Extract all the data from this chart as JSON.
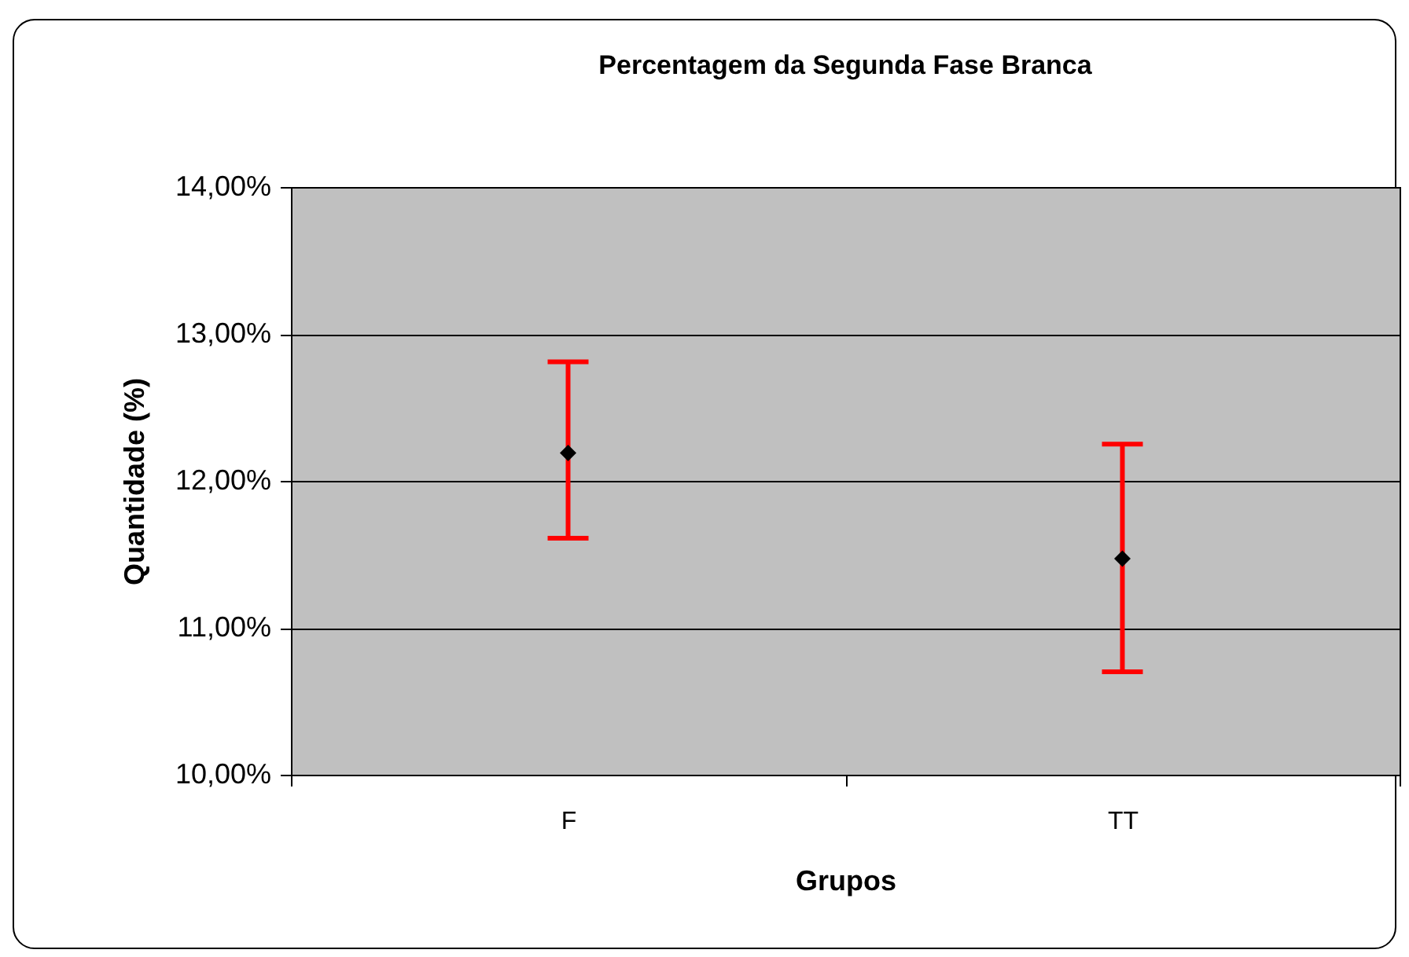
{
  "chart_data": {
    "type": "scatter",
    "title": "Percentagem da Segunda Fase Branca",
    "xlabel": "Grupos",
    "ylabel": "Quantidade (%)",
    "categories": [
      "F",
      "TT"
    ],
    "series": [
      {
        "color": "#000000",
        "values": [
          12.19,
          11.47
        ],
        "errors": [
          [
            11.61,
            12.81
          ],
          [
            10.7,
            12.25
          ]
        ]
      }
    ],
    "ylim": [
      10,
      14
    ],
    "yticks": [
      {
        "value": 10,
        "label": "10,00%"
      },
      {
        "value": 11,
        "label": "11,00%"
      },
      {
        "value": 12,
        "label": "12,00%"
      },
      {
        "value": 13,
        "label": "13,00%"
      },
      {
        "value": 14,
        "label": "14,00%"
      }
    ],
    "grid": "y",
    "marker": "diamond"
  }
}
